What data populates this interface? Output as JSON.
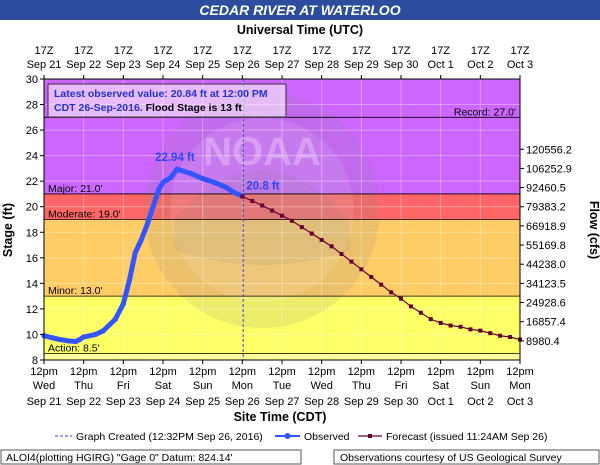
{
  "chart_data": {
    "type": "line",
    "title": "CEDAR RIVER AT WATERLOO",
    "top_axis_label": "Universal Time (UTC)",
    "xlabel": "Site Time (CDT)",
    "ylabel": "Stage (ft)",
    "y2label": "Flow (cfs)",
    "ylim": [
      8,
      30
    ],
    "xlim_days": [
      0,
      12
    ],
    "y_ticks": [
      8,
      10,
      12,
      14,
      16,
      18,
      20,
      22,
      24,
      26,
      28,
      30
    ],
    "flow_ticks": [
      {
        "stage": 9.5,
        "label": "8980.4"
      },
      {
        "stage": 11.0,
        "label": "16857.4"
      },
      {
        "stage": 12.5,
        "label": "24928.6"
      },
      {
        "stage": 14.0,
        "label": "34123.5"
      },
      {
        "stage": 15.5,
        "label": "44238.0"
      },
      {
        "stage": 17.0,
        "label": "55169.8"
      },
      {
        "stage": 18.5,
        "label": "66918.9"
      },
      {
        "stage": 20.0,
        "label": "79383.2"
      },
      {
        "stage": 21.5,
        "label": "92460.5"
      },
      {
        "stage": 23.0,
        "label": "106252.9"
      },
      {
        "stage": 24.5,
        "label": "120556.2"
      }
    ],
    "top_ticks": [
      {
        "l1": "17Z",
        "l2": "Sep 21"
      },
      {
        "l1": "17Z",
        "l2": "Sep 22"
      },
      {
        "l1": "17Z",
        "l2": "Sep 23"
      },
      {
        "l1": "17Z",
        "l2": "Sep 24"
      },
      {
        "l1": "17Z",
        "l2": "Sep 25"
      },
      {
        "l1": "17Z",
        "l2": "Sep 26"
      },
      {
        "l1": "17Z",
        "l2": "Sep 27"
      },
      {
        "l1": "17Z",
        "l2": "Sep 28"
      },
      {
        "l1": "17Z",
        "l2": "Sep 29"
      },
      {
        "l1": "17Z",
        "l2": "Sep 30"
      },
      {
        "l1": "17Z",
        "l2": "Oct 1"
      },
      {
        "l1": "17Z",
        "l2": "Oct 2"
      },
      {
        "l1": "17Z",
        "l2": "Oct 3"
      }
    ],
    "bottom_ticks": [
      {
        "l1": "12pm",
        "l2": "Wed",
        "l3": "Sep 21"
      },
      {
        "l1": "12pm",
        "l2": "Thu",
        "l3": "Sep 22"
      },
      {
        "l1": "12pm",
        "l2": "Fri",
        "l3": "Sep 23"
      },
      {
        "l1": "12pm",
        "l2": "Sat",
        "l3": "Sep 24"
      },
      {
        "l1": "12pm",
        "l2": "Sun",
        "l3": "Sep 25"
      },
      {
        "l1": "12pm",
        "l2": "Mon",
        "l3": "Sep 26"
      },
      {
        "l1": "12pm",
        "l2": "Tue",
        "l3": "Sep 27"
      },
      {
        "l1": "12pm",
        "l2": "Wed",
        "l3": "Sep 28"
      },
      {
        "l1": "12pm",
        "l2": "Thu",
        "l3": "Sep 29"
      },
      {
        "l1": "12pm",
        "l2": "Fri",
        "l3": "Sep 30"
      },
      {
        "l1": "12pm",
        "l2": "Sat",
        "l3": "Oct 1"
      },
      {
        "l1": "12pm",
        "l2": "Sun",
        "l3": "Oct 2"
      },
      {
        "l1": "12pm",
        "l2": "Mon",
        "l3": "Oct 3"
      }
    ],
    "flood_categories": [
      {
        "name": "Action",
        "label": "Action: 8.5'",
        "from": 8.0,
        "to": 8.5,
        "color": "#ffff99"
      },
      {
        "name": "Action-Minor",
        "label": "",
        "from": 8.5,
        "to": 13.0,
        "color": "#ffff66"
      },
      {
        "name": "Minor",
        "label": "Minor: 13.0'",
        "from": 13.0,
        "to": 19.0,
        "color": "#ffcc66"
      },
      {
        "name": "Moderate",
        "label": "Moderate: 19.0'",
        "from": 19.0,
        "to": 21.0,
        "color": "#ff6666"
      },
      {
        "name": "Major",
        "label": "Major: 21.0'",
        "from": 21.0,
        "to": 30.0,
        "color": "#cc66ff"
      }
    ],
    "record": {
      "label": "Record: 27.0'",
      "value": 27.0
    },
    "series": [
      {
        "name": "Observed",
        "color": "#3355ff",
        "x_days": [
          0.0,
          0.2,
          0.4,
          0.6,
          0.8,
          0.9,
          1.0,
          1.3,
          1.5,
          1.8,
          2.0,
          2.15,
          2.3,
          2.45,
          2.6,
          2.75,
          2.9,
          3.0,
          3.1,
          3.2,
          3.35,
          3.5,
          3.7,
          4.0,
          4.3,
          4.6,
          4.8,
          5.0
        ],
        "y": [
          9.9,
          9.75,
          9.6,
          9.5,
          9.45,
          9.6,
          9.8,
          10.0,
          10.3,
          11.2,
          12.4,
          14.2,
          16.4,
          17.4,
          18.6,
          20.0,
          21.4,
          21.9,
          22.1,
          22.3,
          22.94,
          22.8,
          22.6,
          22.2,
          21.9,
          21.5,
          21.1,
          20.84
        ]
      },
      {
        "name": "Forecast",
        "color": "#660033",
        "x_days": [
          5.0,
          5.25,
          5.5,
          5.75,
          6.0,
          6.25,
          6.5,
          6.75,
          7.0,
          7.25,
          7.5,
          7.75,
          8.0,
          8.25,
          8.5,
          8.75,
          9.0,
          9.25,
          9.5,
          9.75,
          10.0,
          10.25,
          10.5,
          10.75,
          11.0,
          11.25,
          11.5,
          11.75,
          12.0
        ],
        "y": [
          20.8,
          20.45,
          20.1,
          19.7,
          19.3,
          18.9,
          18.4,
          17.9,
          17.4,
          16.9,
          16.3,
          15.7,
          15.1,
          14.5,
          13.9,
          13.3,
          12.8,
          12.2,
          11.7,
          11.2,
          10.9,
          10.7,
          10.6,
          10.4,
          10.3,
          10.1,
          9.9,
          9.8,
          9.6
        ]
      }
    ],
    "annotations": {
      "crest_label": "22.94 ft",
      "crest_x_days": 3.35,
      "current_label": "20.8 ft",
      "current_x_days": 5.0,
      "graph_created_x_days": 5.02
    },
    "info_box": {
      "line1": "Latest observed value: 20.84 ft at 12:00 PM",
      "line2_a": "CDT 26-Sep-2016.",
      "line2_b": " Flood Stage is 13 ft"
    },
    "watermark": "NOAA",
    "legend": {
      "created": "Graph Created (12:32PM Sep 26, 2016)",
      "observed": "Observed",
      "forecast": "Forecast (issued 11:24AM Sep 26)"
    },
    "footer": {
      "left": "ALOI4(plotting HGIRG) \"Gage 0\" Datum: 824.14'",
      "right": "Observations courtesy of US Geological Survey"
    }
  }
}
